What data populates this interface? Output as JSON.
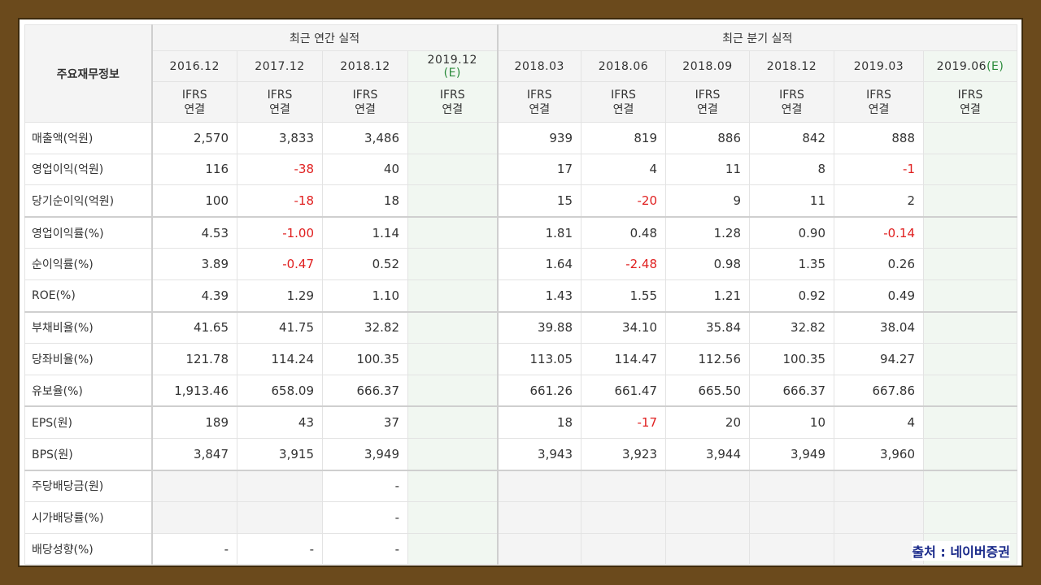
{
  "header": {
    "corner_label": "주요재무정보",
    "annual_group": "최근 연간 실적",
    "quarter_group": "최근 분기 실적",
    "periods": [
      {
        "label": "2016.12",
        "est": ""
      },
      {
        "label": "2017.12",
        "est": ""
      },
      {
        "label": "2018.12",
        "est": ""
      },
      {
        "label": "2019.12",
        "est": "(E)"
      },
      {
        "label": "2018.03",
        "est": ""
      },
      {
        "label": "2018.06",
        "est": ""
      },
      {
        "label": "2018.09",
        "est": ""
      },
      {
        "label": "2018.12",
        "est": ""
      },
      {
        "label": "2019.03",
        "est": ""
      },
      {
        "label": "2019.06",
        "est": "(E)"
      }
    ],
    "ifrs_top": "IFRS",
    "ifrs_bottom": "연결"
  },
  "rows": [
    {
      "label": "매출액(억원)",
      "values": [
        "2,570",
        "3,833",
        "3,486",
        "",
        "939",
        "819",
        "886",
        "842",
        "888",
        ""
      ]
    },
    {
      "label": "영업이익(억원)",
      "values": [
        "116",
        "-38",
        "40",
        "",
        "17",
        "4",
        "11",
        "8",
        "-1",
        ""
      ]
    },
    {
      "label": "당기순이익(억원)",
      "values": [
        "100",
        "-18",
        "18",
        "",
        "15",
        "-20",
        "9",
        "11",
        "2",
        ""
      ]
    },
    {
      "label": "영업이익률(%)",
      "values": [
        "4.53",
        "-1.00",
        "1.14",
        "",
        "1.81",
        "0.48",
        "1.28",
        "0.90",
        "-0.14",
        ""
      ]
    },
    {
      "label": "순이익률(%)",
      "values": [
        "3.89",
        "-0.47",
        "0.52",
        "",
        "1.64",
        "-2.48",
        "0.98",
        "1.35",
        "0.26",
        ""
      ]
    },
    {
      "label": "ROE(%)",
      "values": [
        "4.39",
        "1.29",
        "1.10",
        "",
        "1.43",
        "1.55",
        "1.21",
        "0.92",
        "0.49",
        ""
      ]
    },
    {
      "label": "부채비율(%)",
      "values": [
        "41.65",
        "41.75",
        "32.82",
        "",
        "39.88",
        "34.10",
        "35.84",
        "32.82",
        "38.04",
        ""
      ]
    },
    {
      "label": "당좌비율(%)",
      "values": [
        "121.78",
        "114.24",
        "100.35",
        "",
        "113.05",
        "114.47",
        "112.56",
        "100.35",
        "94.27",
        ""
      ]
    },
    {
      "label": "유보율(%)",
      "values": [
        "1,913.46",
        "658.09",
        "666.37",
        "",
        "661.26",
        "661.47",
        "665.50",
        "666.37",
        "667.86",
        ""
      ]
    },
    {
      "label": "EPS(원)",
      "values": [
        "189",
        "43",
        "37",
        "",
        "18",
        "-17",
        "20",
        "10",
        "4",
        ""
      ]
    },
    {
      "label": "BPS(원)",
      "values": [
        "3,847",
        "3,915",
        "3,949",
        "",
        "3,943",
        "3,923",
        "3,944",
        "3,949",
        "3,960",
        ""
      ]
    },
    {
      "label": "주당배당금(원)",
      "values": [
        "",
        "",
        "-",
        "",
        "",
        "",
        "",
        "",
        "",
        ""
      ]
    },
    {
      "label": "시가배당률(%)",
      "values": [
        "",
        "",
        "-",
        "",
        "",
        "",
        "",
        "",
        "",
        ""
      ]
    },
    {
      "label": "배당성향(%)",
      "values": [
        "-",
        "-",
        "-",
        "",
        "",
        "",
        "",
        "",
        "",
        ""
      ]
    }
  ],
  "source": "출처 : 네이버증권"
}
